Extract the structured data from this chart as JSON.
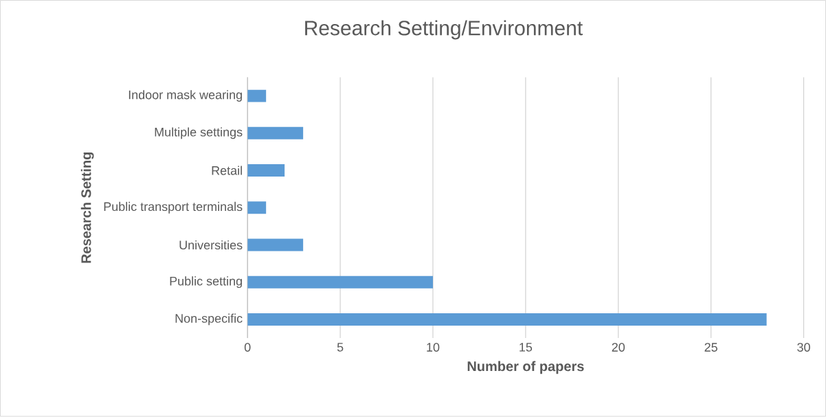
{
  "chart_data": {
    "type": "bar",
    "orientation": "horizontal",
    "title": "Research Setting/Environment",
    "xlabel": "Number of papers",
    "ylabel": "Research Setting",
    "categories": [
      "Indoor mask wearing",
      "Multiple settings",
      "Retail",
      "Public transport terminals",
      "Universities",
      "Public setting",
      "Non-specific"
    ],
    "values": [
      1,
      3,
      2,
      1,
      3,
      10,
      28
    ],
    "color": "#5b9bd5",
    "xlim": [
      0,
      30
    ],
    "xticks": [
      0,
      5,
      10,
      15,
      20,
      25,
      30
    ],
    "grid": "x"
  }
}
